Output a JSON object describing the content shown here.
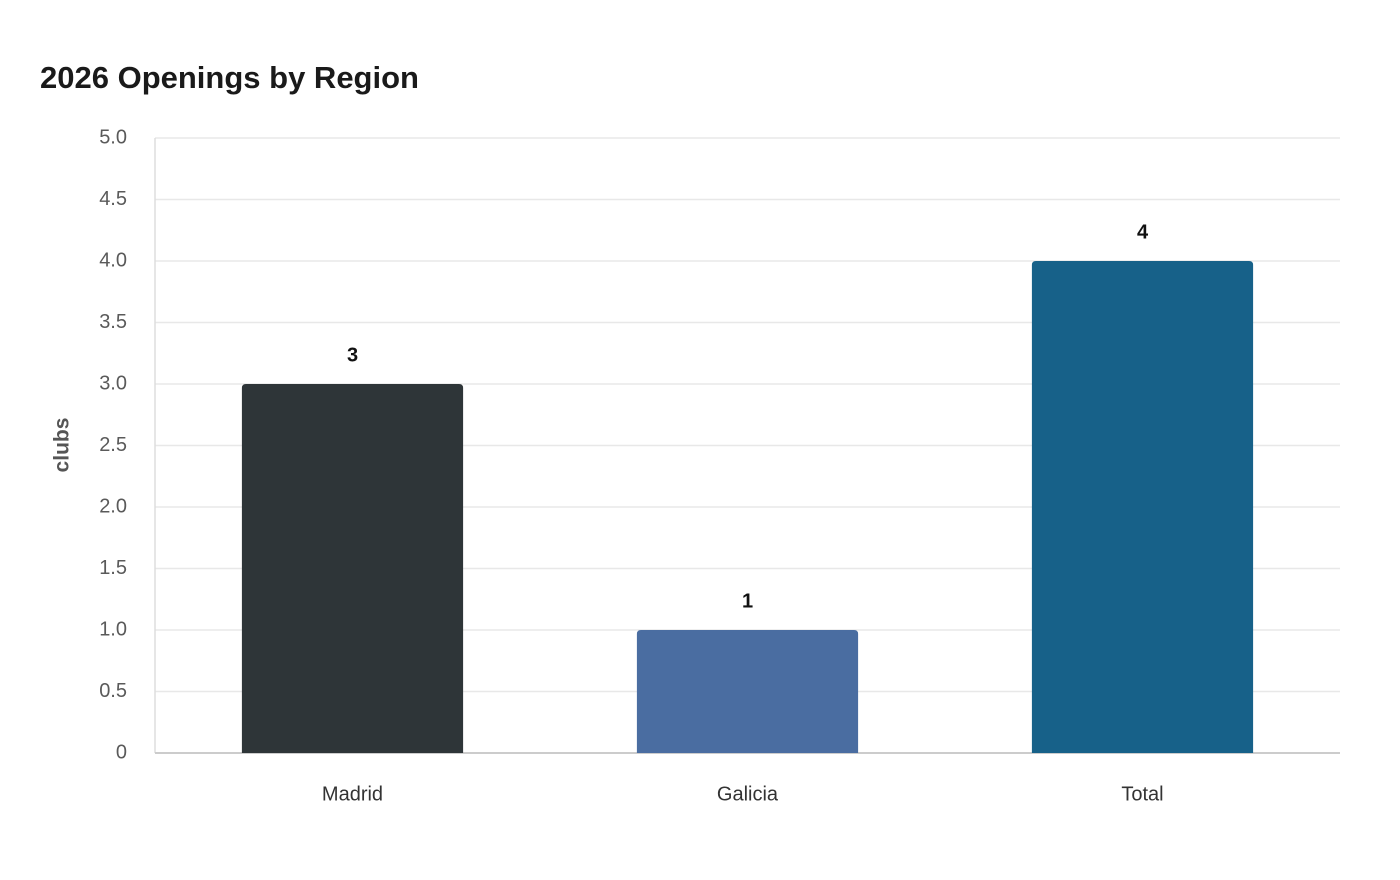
{
  "chart_data": {
    "type": "bar",
    "title": "2026 Openings by Region",
    "y_label": "clubs",
    "categories": [
      "Madrid",
      "Galicia",
      "Total"
    ],
    "values": [
      3,
      1,
      4
    ],
    "colors": [
      "#2e3538",
      "#4a6da1",
      "#176189"
    ],
    "ylim": [
      0,
      5
    ],
    "yticks": [
      0,
      0.5,
      {
        "value": 1,
        "label": "1.0"
      },
      1.5,
      {
        "value": 2,
        "label": "2.0"
      },
      2.5,
      {
        "value": 3,
        "label": "3.0"
      },
      3.5,
      {
        "value": 4,
        "label": "4.0"
      },
      4.5,
      {
        "value": 5,
        "label": "5.0"
      }
    ],
    "grid": true
  }
}
